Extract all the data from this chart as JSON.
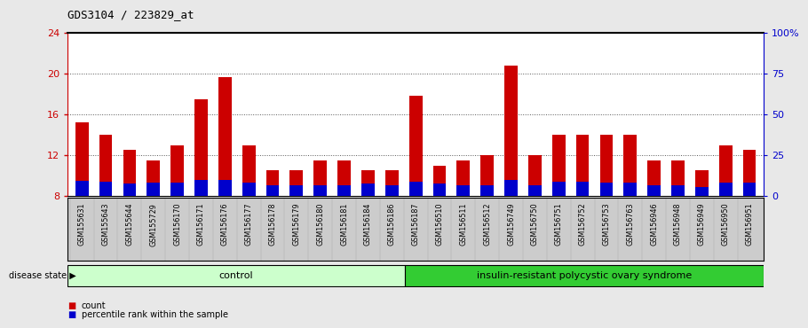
{
  "title": "GDS3104 / 223829_at",
  "samples": [
    "GSM155631",
    "GSM155643",
    "GSM155644",
    "GSM155729",
    "GSM156170",
    "GSM156171",
    "GSM156176",
    "GSM156177",
    "GSM156178",
    "GSM156179",
    "GSM156180",
    "GSM156181",
    "GSM156184",
    "GSM156186",
    "GSM156187",
    "GSM156510",
    "GSM156511",
    "GSM156512",
    "GSM156749",
    "GSM156750",
    "GSM156751",
    "GSM156752",
    "GSM156753",
    "GSM156763",
    "GSM156946",
    "GSM156948",
    "GSM156949",
    "GSM156950",
    "GSM156951"
  ],
  "count_values": [
    15.2,
    14.0,
    12.5,
    11.5,
    13.0,
    17.5,
    19.7,
    13.0,
    10.5,
    10.5,
    11.5,
    11.5,
    10.5,
    10.5,
    17.8,
    11.0,
    11.5,
    12.0,
    20.8,
    12.0,
    14.0,
    14.0,
    14.0,
    14.0,
    11.5,
    11.5,
    10.5,
    13.0,
    12.5
  ],
  "percentile_values": [
    9.5,
    9.4,
    9.2,
    9.3,
    9.3,
    9.6,
    9.6,
    9.3,
    9.1,
    9.1,
    9.1,
    9.1,
    9.2,
    9.1,
    9.4,
    9.2,
    9.1,
    9.1,
    9.6,
    9.1,
    9.4,
    9.4,
    9.3,
    9.3,
    9.1,
    9.1,
    8.9,
    9.3,
    9.3
  ],
  "control_count": 14,
  "disease_count": 15,
  "ylim_left": [
    8,
    24
  ],
  "ylim_right": [
    0,
    100
  ],
  "yticks_left": [
    8,
    12,
    16,
    20,
    24
  ],
  "yticks_right": [
    0,
    25,
    50,
    75,
    100
  ],
  "right_tick_labels": [
    "0",
    "25",
    "50",
    "75",
    "100%"
  ],
  "bar_color_count": "#cc0000",
  "bar_color_percentile": "#0000cc",
  "bar_width": 0.55,
  "background_color": "#e8e8e8",
  "plot_bg": "#ffffff",
  "control_label": "control",
  "disease_label": "insulin-resistant polycystic ovary syndrome",
  "control_color": "#ccffcc",
  "disease_color": "#33cc33",
  "legend_count_label": "count",
  "legend_pct_label": "percentile rank within the sample",
  "disease_state_label": "disease state",
  "axis_color_left": "#cc0000",
  "axis_color_right": "#0000cc",
  "base_value": 8,
  "xtick_bg": "#cccccc"
}
